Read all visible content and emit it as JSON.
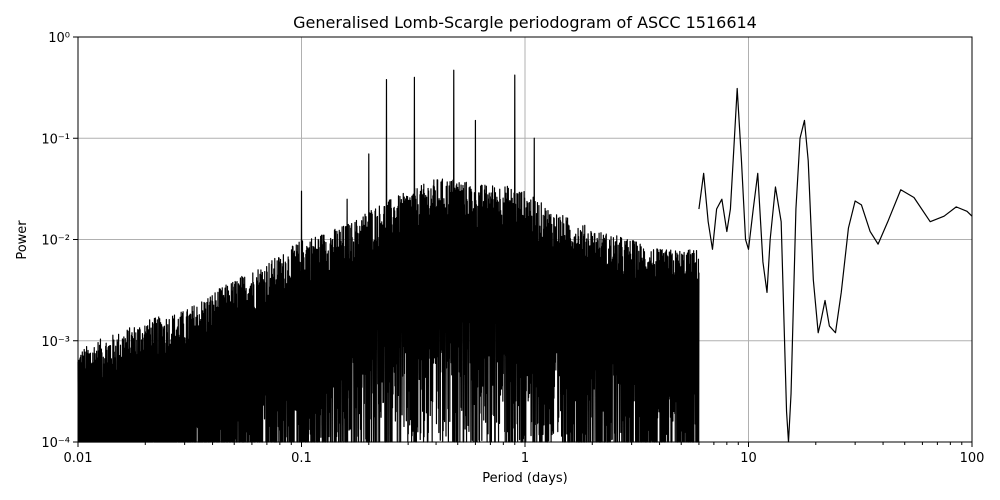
{
  "chart_data": {
    "type": "line",
    "title": "Generalised Lomb-Scargle periodogram of ASCC 1516614",
    "xlabel": "Period (days)",
    "ylabel": "Power",
    "xscale": "log",
    "yscale": "log",
    "xlim": [
      0.01,
      100
    ],
    "ylim": [
      0.0001,
      1
    ],
    "grid": true,
    "x_ticks": [
      {
        "value": 0.01,
        "label": "0.01"
      },
      {
        "value": 0.1,
        "label": "0.1"
      },
      {
        "value": 1,
        "label": "1"
      },
      {
        "value": 10,
        "label": "10"
      },
      {
        "value": 100,
        "label": "100"
      }
    ],
    "y_ticks": [
      {
        "value": 0.0001,
        "label": "10⁻⁴"
      },
      {
        "value": 0.001,
        "label": "10⁻³"
      },
      {
        "value": 0.01,
        "label": "10⁻²"
      },
      {
        "value": 0.1,
        "label": "10⁻¹"
      },
      {
        "value": 1,
        "label": "10⁰"
      }
    ],
    "series": [
      {
        "color": "#000000",
        "envelope": {
          "x": [
            0.01,
            0.012,
            0.015,
            0.02,
            0.03,
            0.04,
            0.05,
            0.06,
            0.08,
            0.1,
            0.13,
            0.17,
            0.2,
            0.25,
            0.3,
            0.4,
            0.5,
            0.6,
            0.8,
            1.0,
            1.3,
            1.7,
            2.2,
            3.0,
            4.0,
            5.0,
            6.0
          ],
          "y": [
            0.0008,
            0.001,
            0.0012,
            0.0016,
            0.002,
            0.003,
            0.004,
            0.005,
            0.007,
            0.01,
            0.012,
            0.015,
            0.02,
            0.025,
            0.03,
            0.04,
            0.04,
            0.035,
            0.035,
            0.03,
            0.02,
            0.015,
            0.012,
            0.01,
            0.008,
            0.008,
            0.008
          ]
        },
        "peaks": [
          {
            "x": 0.1,
            "y": 0.03
          },
          {
            "x": 0.16,
            "y": 0.025
          },
          {
            "x": 0.2,
            "y": 0.07
          },
          {
            "x": 0.24,
            "y": 0.38
          },
          {
            "x": 0.32,
            "y": 0.4
          },
          {
            "x": 0.48,
            "y": 0.47
          },
          {
            "x": 0.6,
            "y": 0.15
          },
          {
            "x": 0.9,
            "y": 0.42
          },
          {
            "x": 1.1,
            "y": 0.1
          }
        ],
        "smooth": {
          "x": [
            6.0,
            6.3,
            6.6,
            6.9,
            7.2,
            7.6,
            8.0,
            8.3,
            8.6,
            8.9,
            9.3,
            9.7,
            10.0,
            10.5,
            11.0,
            11.6,
            12.1,
            12.5,
            13.2,
            14.0,
            14.8,
            15.1,
            15.5,
            16.3,
            17.0,
            17.8,
            18.5,
            19.5,
            20.5,
            21.0,
            22.0,
            23.0,
            24.5,
            26.0,
            28.0,
            30.0,
            32.0,
            35.0,
            38.0,
            42.0,
            48.0,
            55.0,
            65.0,
            75.0,
            85.0,
            95.0,
            100.0
          ],
          "y": [
            0.02,
            0.045,
            0.015,
            0.008,
            0.02,
            0.025,
            0.012,
            0.02,
            0.08,
            0.31,
            0.06,
            0.01,
            0.008,
            0.02,
            0.045,
            0.006,
            0.003,
            0.01,
            0.033,
            0.015,
            0.0002,
            0.0001,
            0.0003,
            0.02,
            0.1,
            0.15,
            0.06,
            0.004,
            0.0012,
            0.0015,
            0.0025,
            0.0014,
            0.0012,
            0.003,
            0.013,
            0.024,
            0.022,
            0.012,
            0.009,
            0.015,
            0.031,
            0.026,
            0.015,
            0.017,
            0.021,
            0.019,
            0.017
          ]
        }
      }
    ]
  }
}
